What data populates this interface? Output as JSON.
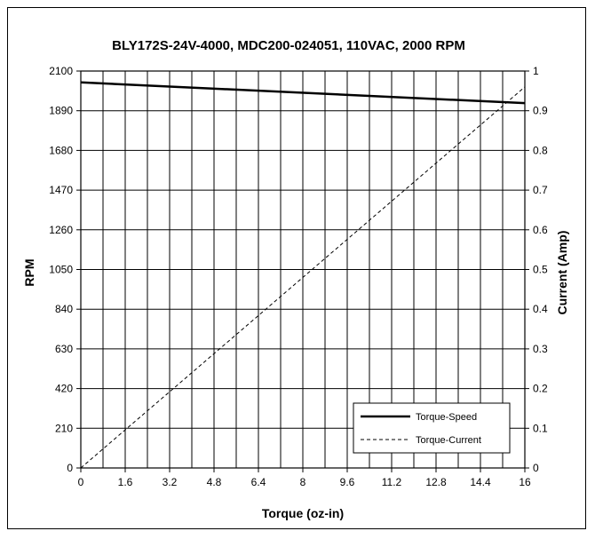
{
  "chart_data": {
    "type": "line",
    "title": "BLY172S-24V-4000, MDC200-024051, 110VAC, 2000 RPM",
    "xlabel": "Torque (oz-in)",
    "ylabel": "RPM",
    "y2label": "Current (Amp)",
    "xlim": [
      0,
      16
    ],
    "ylim": [
      0,
      2100
    ],
    "y2lim": [
      0,
      1
    ],
    "x_ticks": [
      "0",
      "1.6",
      "3.2",
      "4.8",
      "6.4",
      "8",
      "9.6",
      "11.2",
      "12.8",
      "14.4",
      "16"
    ],
    "y_ticks": [
      "0",
      "210",
      "420",
      "630",
      "840",
      "1050",
      "1260",
      "1470",
      "1680",
      "1890",
      "2100"
    ],
    "y2_ticks": [
      "0",
      "0.1",
      "0.2",
      "0.3",
      "0.4",
      "0.5",
      "0.6",
      "0.7",
      "0.8",
      "0.9",
      "1"
    ],
    "grid": true,
    "legend_position": "bottom-right",
    "series": [
      {
        "name": "Torque-Speed",
        "axis": "left",
        "style": "solid",
        "color": "#000000",
        "x": [
          0,
          16
        ],
        "y": [
          2040,
          1930
        ]
      },
      {
        "name": "Torque-Current",
        "axis": "right",
        "style": "dashed",
        "color": "#000000",
        "x": [
          0,
          16
        ],
        "y": [
          0,
          0.96
        ]
      }
    ]
  }
}
